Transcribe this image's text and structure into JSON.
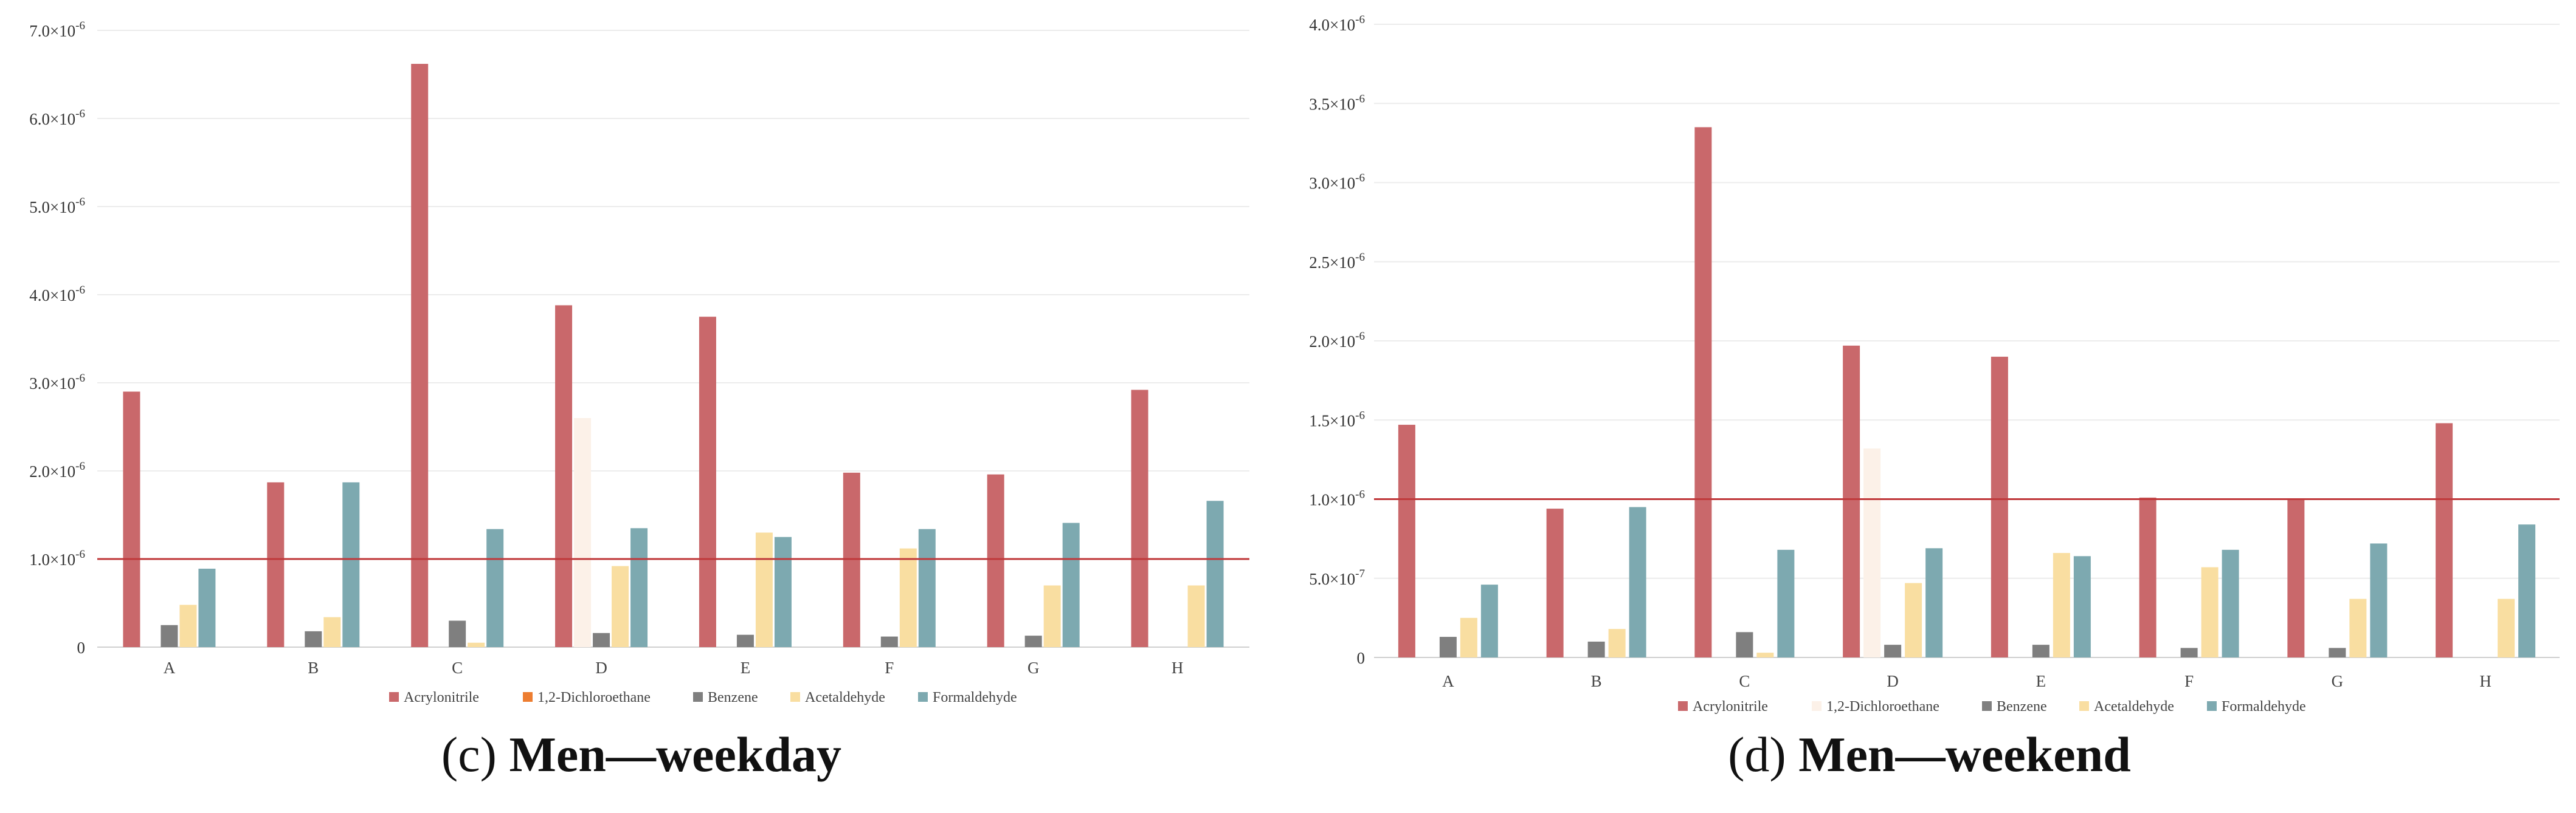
{
  "legend": [
    "Acrylonitrile",
    "1,2-Dichloroethane",
    "Benzene",
    "Acetaldehyde",
    "Formaldehyde"
  ],
  "colors": {
    "Acrylonitrile": "#c9686b",
    "1,2-Dichloroethane": "#fcf1e8",
    "Benzene": "#7f7f7f",
    "Acetaldehyde": "#f9dea1",
    "Formaldehyde": "#7da9b0",
    "reference_line": "#c0393b",
    "legend_dichloroethane_marker": "#ed7d31"
  },
  "captions": [
    {
      "prefix": "(c)",
      "title": "Men—weekday"
    },
    {
      "prefix": "(d)",
      "title": "Men—weekend"
    }
  ],
  "chart_data": [
    {
      "type": "bar",
      "categories": [
        "A",
        "B",
        "C",
        "D",
        "E",
        "F",
        "G",
        "H"
      ],
      "ylim": [
        0,
        7e-06
      ],
      "yticks": [
        {
          "value": 0,
          "mant": "0",
          "exp": ""
        },
        {
          "value": 1e-06,
          "mant": "1.0×10",
          "exp": "-6"
        },
        {
          "value": 2e-06,
          "mant": "2.0×10",
          "exp": "-6"
        },
        {
          "value": 3e-06,
          "mant": "3.0×10",
          "exp": "-6"
        },
        {
          "value": 4e-06,
          "mant": "4.0×10",
          "exp": "-6"
        },
        {
          "value": 5e-06,
          "mant": "5.0×10",
          "exp": "-6"
        },
        {
          "value": 6e-06,
          "mant": "6.0×10",
          "exp": "-6"
        },
        {
          "value": 7e-06,
          "mant": "7.0×10",
          "exp": "-6"
        }
      ],
      "reference_line": 1e-06,
      "grid": true,
      "legend_position": "bottom",
      "series": [
        {
          "name": "Acrylonitrile",
          "values": [
            2.9e-06,
            1.87e-06,
            6.62e-06,
            3.88e-06,
            3.75e-06,
            1.98e-06,
            1.96e-06,
            2.92e-06
          ]
        },
        {
          "name": "1,2-Dichloroethane",
          "values": [
            0,
            0,
            0,
            2.6e-06,
            0,
            0,
            0,
            0
          ]
        },
        {
          "name": "Benzene",
          "values": [
            2.5e-07,
            1.8e-07,
            3e-07,
            1.6e-07,
            1.4e-07,
            1.2e-07,
            1.3e-07,
            0
          ]
        },
        {
          "name": "Acetaldehyde",
          "values": [
            4.8e-07,
            3.4e-07,
            5e-08,
            9.2e-07,
            1.3e-06,
            1.12e-06,
            7e-07,
            7e-07
          ]
        },
        {
          "name": "Formaldehyde",
          "values": [
            8.9e-07,
            1.87e-06,
            1.34e-06,
            1.35e-06,
            1.25e-06,
            1.34e-06,
            1.41e-06,
            1.66e-06
          ]
        }
      ]
    },
    {
      "type": "bar",
      "categories": [
        "A",
        "B",
        "C",
        "D",
        "E",
        "F",
        "G",
        "H"
      ],
      "ylim": [
        0,
        4e-06
      ],
      "yticks": [
        {
          "value": 0,
          "mant": "0",
          "exp": ""
        },
        {
          "value": 5e-07,
          "mant": "5.0×10",
          "exp": "-7"
        },
        {
          "value": 1e-06,
          "mant": "1.0×10",
          "exp": "-6"
        },
        {
          "value": 1.5e-06,
          "mant": "1.5×10",
          "exp": "-6"
        },
        {
          "value": 2e-06,
          "mant": "2.0×10",
          "exp": "-6"
        },
        {
          "value": 2.5e-06,
          "mant": "2.5×10",
          "exp": "-6"
        },
        {
          "value": 3e-06,
          "mant": "3.0×10",
          "exp": "-6"
        },
        {
          "value": 3.5e-06,
          "mant": "3.5×10",
          "exp": "-6"
        },
        {
          "value": 4e-06,
          "mant": "4.0×10",
          "exp": "-6"
        }
      ],
      "reference_line": 1e-06,
      "grid": true,
      "legend_position": "bottom",
      "series": [
        {
          "name": "Acrylonitrile",
          "values": [
            1.47e-06,
            9.4e-07,
            3.35e-06,
            1.97e-06,
            1.9e-06,
            1.01e-06,
            1e-06,
            1.48e-06
          ]
        },
        {
          "name": "1,2-Dichloroethane",
          "values": [
            0,
            0,
            0,
            1.32e-06,
            0,
            0,
            0,
            0
          ]
        },
        {
          "name": "Benzene",
          "values": [
            1.3e-07,
            1e-07,
            1.6e-07,
            8e-08,
            8e-08,
            6e-08,
            6e-08,
            0
          ]
        },
        {
          "name": "Acetaldehyde",
          "values": [
            2.5e-07,
            1.8e-07,
            3e-08,
            4.7e-07,
            6.6e-07,
            5.7e-07,
            3.7e-07,
            3.7e-07
          ]
        },
        {
          "name": "Formaldehyde",
          "values": [
            4.6e-07,
            9.5e-07,
            6.8e-07,
            6.9e-07,
            6.4e-07,
            6.8e-07,
            7.2e-07,
            8.4e-07
          ]
        }
      ]
    }
  ]
}
